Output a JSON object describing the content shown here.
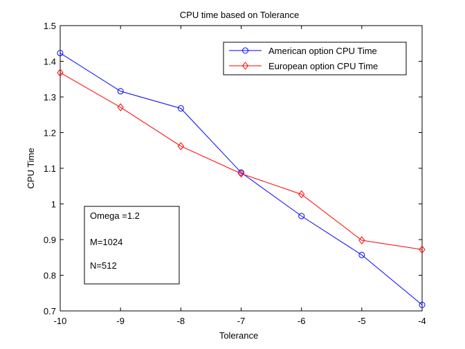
{
  "chart_data": {
    "type": "line",
    "title": "CPU time based on Tolerance",
    "xlabel": "Tolerance",
    "ylabel": "CPU Time",
    "xlim": [
      -10,
      -4
    ],
    "ylim": [
      0.7,
      1.5
    ],
    "xticks": [
      -10,
      -9,
      -8,
      -7,
      -6,
      -5,
      -4
    ],
    "xtick_labels": [
      "-10",
      "-9",
      "-8",
      "-7",
      "-6",
      "-5",
      "-4"
    ],
    "yticks": [
      0.7,
      0.8,
      0.9,
      1.0,
      1.1,
      1.2,
      1.3,
      1.4,
      1.5
    ],
    "ytick_labels": [
      "0.7",
      "0.8",
      "0.9",
      "1",
      "1.1",
      "1.2",
      "1.3",
      "1.4",
      "1.5"
    ],
    "grid": false,
    "legend_position": "top-right",
    "x": [
      -10,
      -9,
      -8,
      -7,
      -6,
      -5,
      -4
    ],
    "series": [
      {
        "name": "American option CPU Time",
        "values": [
          1.423,
          1.316,
          1.268,
          1.088,
          0.966,
          0.857,
          0.717
        ],
        "color": "#0000ff",
        "marker": "circle"
      },
      {
        "name": "European option CPU Time",
        "values": [
          1.368,
          1.271,
          1.162,
          1.085,
          1.027,
          0.898,
          0.872
        ],
        "color": "#ff0000",
        "marker": "diamond"
      }
    ],
    "annotation": {
      "lines": [
        "Omega =1.2",
        "M=1024",
        "N=512"
      ]
    }
  }
}
